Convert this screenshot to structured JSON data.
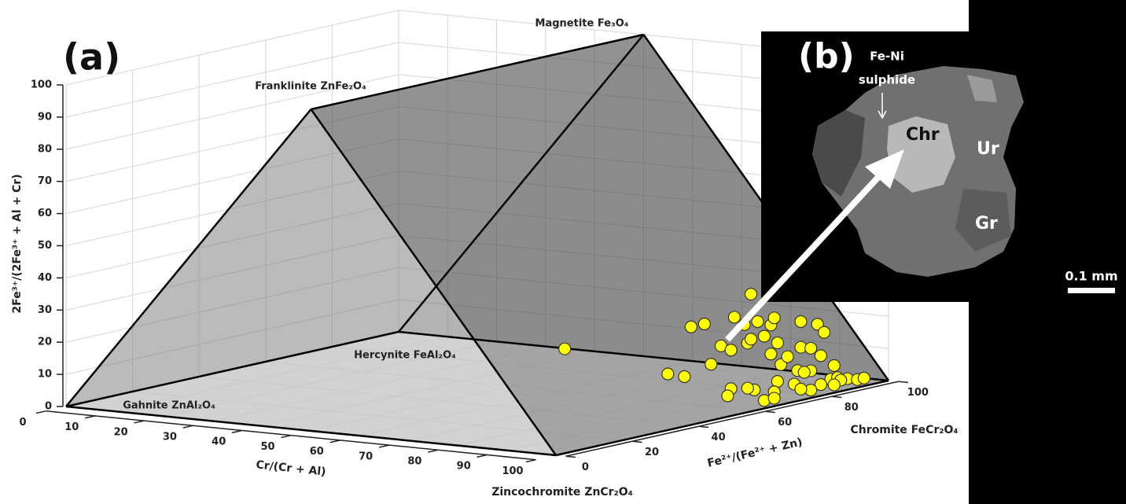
{
  "chart_data": {
    "type": "scatter3d",
    "panel_label": "(a)",
    "xlabel": "Cr/(Cr + Al)",
    "ylabel": "Fe²⁺/(Fe²⁺ + Zn)",
    "zlabel": "2Fe³⁺/(2Fe³⁺ + Al + Cr)",
    "xlim": [
      0,
      100
    ],
    "ylim": [
      0,
      100
    ],
    "zlim": [
      0,
      100
    ],
    "xticks": [
      0,
      10,
      20,
      30,
      40,
      50,
      60,
      70,
      80,
      90,
      100
    ],
    "yticks": [
      0,
      20,
      40,
      60,
      80,
      100
    ],
    "zticks": [
      0,
      10,
      20,
      30,
      40,
      50,
      60,
      70,
      80,
      90,
      100
    ],
    "grid": true,
    "end_members": {
      "gahnite": "Gahnite ZnAl₂O₄",
      "zincochromite": "Zincochromite ZnCr₂O₄",
      "chromite": "Chromite FeCr₂O₄",
      "hercynite": "Hercynite FeAl₂O₄",
      "franklinite": "Franklinite ZnFe₂O₄",
      "magnetite": "Magnetite Fe₃O₄"
    },
    "series": [
      {
        "color": "#ffff00",
        "x": [
          95,
          95,
          95,
          95,
          95,
          95,
          95,
          95,
          95,
          95,
          95,
          95,
          95,
          95,
          95,
          95,
          95,
          95,
          95,
          95,
          95,
          95,
          95,
          95,
          95,
          95,
          95,
          95,
          95,
          95,
          95,
          95,
          95,
          95,
          95,
          95,
          95,
          95,
          95,
          95,
          95,
          95,
          95,
          95,
          95,
          95,
          95,
          95,
          95,
          95
        ],
        "y": [
          10,
          41,
          46,
          48,
          52,
          54,
          57,
          60,
          61,
          66,
          68,
          65,
          66,
          70,
          72,
          73,
          74,
          72,
          75,
          77,
          81,
          86,
          81,
          84,
          88,
          84,
          87,
          91,
          80,
          82,
          79,
          90,
          92,
          95,
          98,
          93,
          87,
          84,
          81,
          74,
          73,
          67,
          65,
          60,
          59,
          70,
          73,
          64,
          91,
          100
        ],
        "z": [
          30,
          15,
          13,
          28,
          28,
          15,
          20,
          18,
          28,
          34,
          25,
          19,
          20,
          20,
          23,
          25,
          17,
          14,
          10,
          12,
          22,
          20,
          14,
          13,
          17,
          6,
          10,
          6,
          7,
          6,
          3,
          2,
          2,
          1,
          0,
          1,
          1,
          0,
          1,
          5,
          2,
          4,
          5,
          6,
          4,
          0,
          0,
          25,
          0,
          0
        ]
      }
    ]
  },
  "image_panel": {
    "label": "(b)",
    "annotations": [
      "Fe-Ni",
      "sulphide",
      "Chr",
      "Ur",
      "Gr"
    ],
    "scale_bar": "0.1 mm"
  }
}
